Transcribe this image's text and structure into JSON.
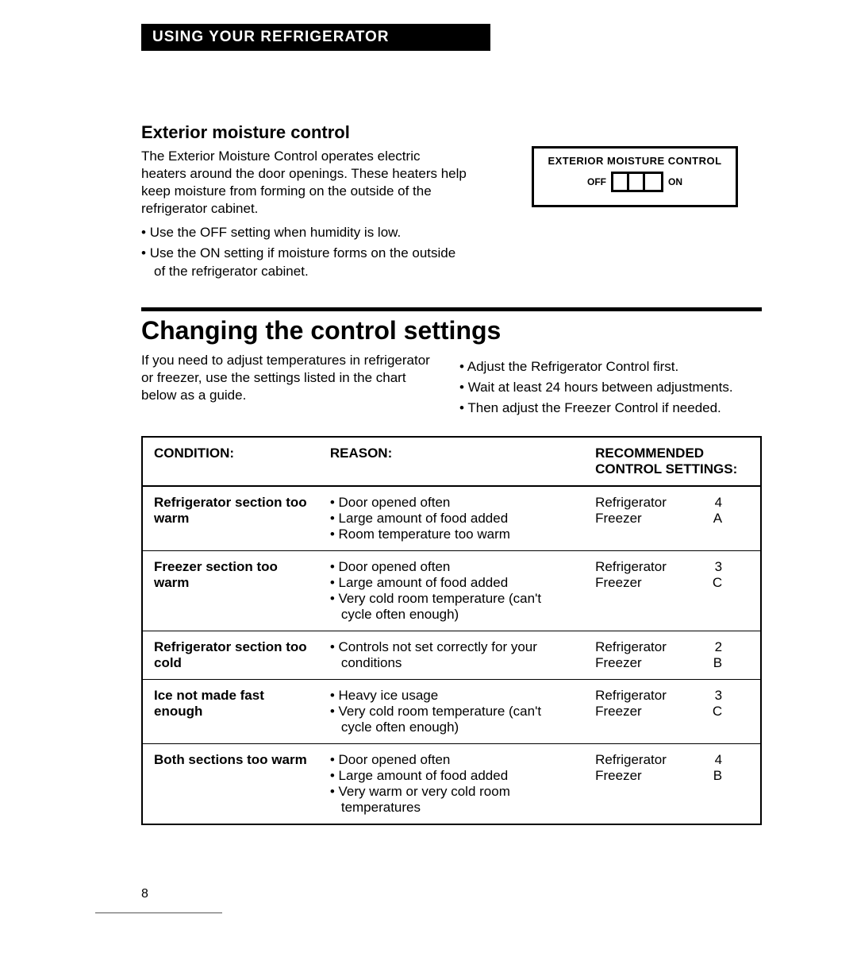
{
  "header": {
    "bar_text": "USING YOUR REFRIGERATOR"
  },
  "moisture": {
    "heading": "Exterior moisture control",
    "para": "The Exterior Moisture Control operates electric heaters around the door openings. These heaters help keep moisture from forming on the outside of the refrigerator cabinet.",
    "bullets": [
      "Use the OFF setting when humidity is low.",
      "Use the ON setting if moisture forms on the outside of the refrigerator cabinet."
    ],
    "diagram": {
      "title": "EXTERIOR MOISTURE CONTROL",
      "off_label": "OFF",
      "on_label": "ON"
    }
  },
  "changing": {
    "heading": "Changing the control settings",
    "left_para": "If you need to adjust temperatures in refrigerator or freezer, use the settings listed in the chart below as a guide.",
    "right_bullets": [
      "Adjust the Refrigerator Control first.",
      "Wait at least 24 hours between adjustments.",
      "Then adjust the Freezer Control if needed."
    ]
  },
  "table": {
    "headers": {
      "condition": "CONDITION:",
      "reason": "REASON:",
      "rec": "RECOMMENDED CONTROL SETTINGS:"
    },
    "rows": [
      {
        "condition": "Refrigerator section too warm",
        "reasons": [
          "Door opened often",
          "Large amount of food added",
          "Room temperature too warm"
        ],
        "rec": [
          {
            "label": "Refrigerator",
            "val": "4"
          },
          {
            "label": "Freezer",
            "val": "A"
          }
        ]
      },
      {
        "condition": "Freezer section too warm",
        "reasons": [
          "Door opened often",
          "Large amount of food added",
          "Very cold room temperature (can't cycle often enough)"
        ],
        "rec": [
          {
            "label": "Refrigerator",
            "val": "3"
          },
          {
            "label": "Freezer",
            "val": "C"
          }
        ]
      },
      {
        "condition": "Refrigerator section too cold",
        "reasons": [
          "Controls not set correctly for your conditions"
        ],
        "rec": [
          {
            "label": "Refrigerator",
            "val": "2"
          },
          {
            "label": "Freezer",
            "val": "B"
          }
        ]
      },
      {
        "condition": "Ice not made fast enough",
        "reasons": [
          "Heavy ice usage",
          "Very cold room temperature (can't cycle often enough)"
        ],
        "rec": [
          {
            "label": "Refrigerator",
            "val": "3"
          },
          {
            "label": "Freezer",
            "val": "C"
          }
        ]
      },
      {
        "condition": "Both sections too warm",
        "reasons": [
          "Door opened often",
          "Large amount of food added",
          "Very warm or very cold room temperatures"
        ],
        "rec": [
          {
            "label": "Refrigerator",
            "val": "4"
          },
          {
            "label": "Freezer",
            "val": "B"
          }
        ]
      }
    ]
  },
  "page_number": "8"
}
